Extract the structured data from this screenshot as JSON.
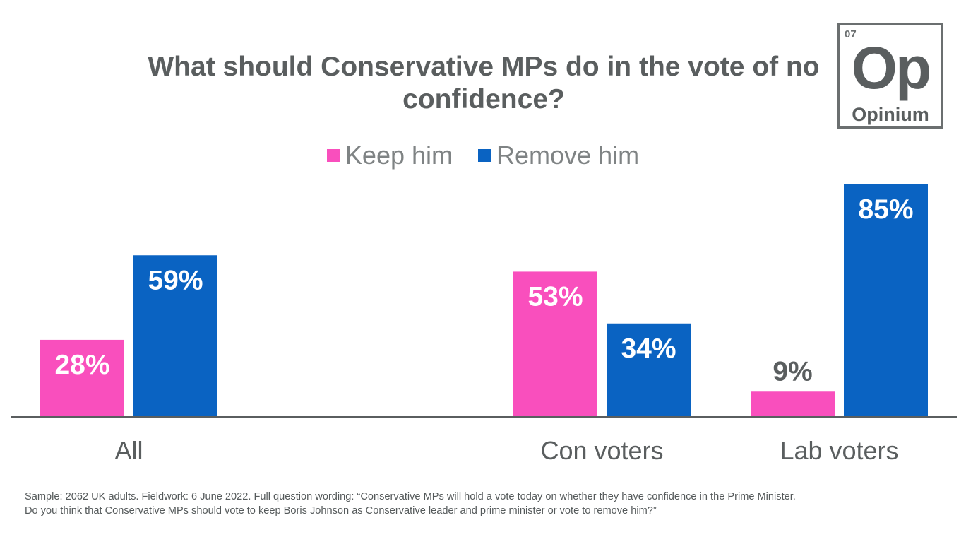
{
  "title": "What should Conservative MPs do in the vote of no confidence?",
  "logo": {
    "number": "07",
    "symbol": "Op",
    "name": "Opinium"
  },
  "footnote_line1": "Sample: 2062 UK adults. Fieldwork: 6 June 2022. Full question wording: “Conservative MPs will hold a vote today on whether they have confidence in the Prime Minister.",
  "footnote_line2": "Do you think that Conservative MPs should vote to keep Boris Johnson as Conservative leader and prime minister or vote to remove him?”",
  "colors": {
    "keep": "#f94fbd",
    "remove": "#0a63c2",
    "axis": "#5a5e5f",
    "text": "#5a5e5f"
  },
  "chart_data": {
    "type": "bar",
    "categories": [
      "All",
      "Con voters",
      "Lab voters"
    ],
    "series": [
      {
        "name": "Keep him",
        "values": [
          28,
          53,
          9
        ],
        "labels": [
          "28%",
          "53%",
          "9%"
        ]
      },
      {
        "name": "Remove him",
        "values": [
          59,
          34,
          85
        ],
        "labels": [
          "59%",
          "34%",
          "85%"
        ]
      }
    ],
    "ylim": [
      0,
      100
    ],
    "grid": false,
    "legend": "top-center",
    "xlabel": "",
    "ylabel": ""
  }
}
